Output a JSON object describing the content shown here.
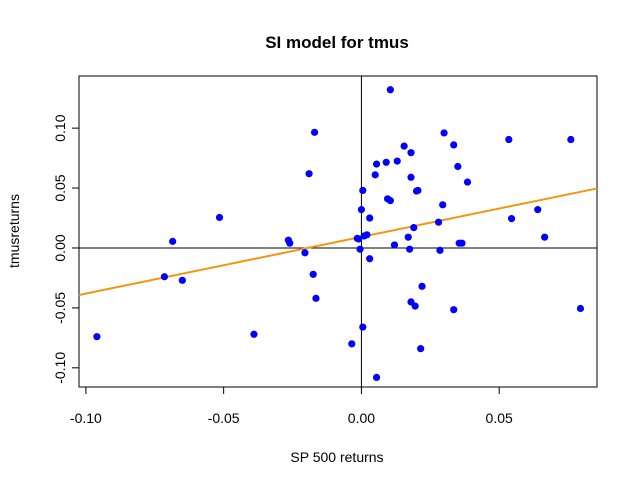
{
  "chart_data": {
    "type": "scatter",
    "title": "SI model for tmus",
    "xlabel": "SP 500 returns",
    "ylabel": "tmusreturns",
    "xlim": [
      -0.1025,
      0.0855
    ],
    "ylim": [
      -0.116,
      0.1435
    ],
    "x_ticks": [
      -0.1,
      -0.05,
      0.0,
      0.05
    ],
    "x_tick_labels": [
      "-0.10",
      "-0.05",
      "0.00",
      "0.05"
    ],
    "y_ticks": [
      -0.1,
      -0.05,
      0.0,
      0.05,
      0.1
    ],
    "y_tick_labels": [
      "-0.10",
      "-0.05",
      "0.00",
      "0.05",
      "0.10"
    ],
    "grid": false,
    "reference_lines": {
      "h": 0,
      "v": 0
    },
    "point_color": "#0000ff",
    "fit_color": "#f5940f",
    "fit_line": {
      "intercept": 0.00925,
      "slope": 0.473
    },
    "points": [
      {
        "x": -0.096,
        "y": -0.074
      },
      {
        "x": -0.0715,
        "y": -0.024
      },
      {
        "x": -0.0685,
        "y": 0.0055
      },
      {
        "x": -0.065,
        "y": -0.027
      },
      {
        "x": -0.0515,
        "y": 0.0255
      },
      {
        "x": -0.039,
        "y": -0.072
      },
      {
        "x": -0.0265,
        "y": 0.0065
      },
      {
        "x": -0.026,
        "y": 0.004
      },
      {
        "x": -0.0205,
        "y": -0.004
      },
      {
        "x": -0.019,
        "y": 0.062
      },
      {
        "x": -0.0175,
        "y": -0.022
      },
      {
        "x": -0.017,
        "y": 0.0965
      },
      {
        "x": -0.0165,
        "y": -0.042
      },
      {
        "x": -0.0035,
        "y": -0.08
      },
      {
        "x": -0.0015,
        "y": 0.008
      },
      {
        "x": -0.001,
        "y": 0.0075
      },
      {
        "x": -0.0005,
        "y": -0.001
      },
      {
        "x": 0.0,
        "y": 0.032
      },
      {
        "x": 0.0005,
        "y": 0.048
      },
      {
        "x": 0.0005,
        "y": -0.066
      },
      {
        "x": 0.001,
        "y": 0.01
      },
      {
        "x": 0.002,
        "y": 0.011
      },
      {
        "x": 0.003,
        "y": 0.025
      },
      {
        "x": 0.003,
        "y": -0.009
      },
      {
        "x": 0.005,
        "y": 0.061
      },
      {
        "x": 0.0055,
        "y": 0.07
      },
      {
        "x": 0.0055,
        "y": -0.108
      },
      {
        "x": 0.009,
        "y": 0.0715
      },
      {
        "x": 0.0095,
        "y": 0.041
      },
      {
        "x": 0.0105,
        "y": 0.0395
      },
      {
        "x": 0.0105,
        "y": 0.132
      },
      {
        "x": 0.012,
        "y": 0.0025
      },
      {
        "x": 0.013,
        "y": 0.0725
      },
      {
        "x": 0.0155,
        "y": 0.085
      },
      {
        "x": 0.017,
        "y": 0.009
      },
      {
        "x": 0.0175,
        "y": -0.001
      },
      {
        "x": 0.018,
        "y": 0.0795
      },
      {
        "x": 0.018,
        "y": 0.059
      },
      {
        "x": 0.018,
        "y": -0.045
      },
      {
        "x": 0.019,
        "y": 0.017
      },
      {
        "x": 0.0195,
        "y": -0.0485
      },
      {
        "x": 0.02,
        "y": 0.0475
      },
      {
        "x": 0.0205,
        "y": 0.048
      },
      {
        "x": 0.0215,
        "y": -0.084
      },
      {
        "x": 0.022,
        "y": -0.032
      },
      {
        "x": 0.028,
        "y": 0.0215
      },
      {
        "x": 0.0285,
        "y": -0.002
      },
      {
        "x": 0.0295,
        "y": 0.036
      },
      {
        "x": 0.03,
        "y": 0.096
      },
      {
        "x": 0.0335,
        "y": 0.086
      },
      {
        "x": 0.0335,
        "y": -0.0515
      },
      {
        "x": 0.035,
        "y": 0.068
      },
      {
        "x": 0.0355,
        "y": 0.004
      },
      {
        "x": 0.0365,
        "y": 0.004
      },
      {
        "x": 0.0385,
        "y": 0.055
      },
      {
        "x": 0.0535,
        "y": 0.0905
      },
      {
        "x": 0.0545,
        "y": 0.0245
      },
      {
        "x": 0.064,
        "y": 0.032
      },
      {
        "x": 0.0665,
        "y": 0.009
      },
      {
        "x": 0.076,
        "y": 0.0905
      },
      {
        "x": 0.0795,
        "y": -0.0505
      }
    ]
  }
}
